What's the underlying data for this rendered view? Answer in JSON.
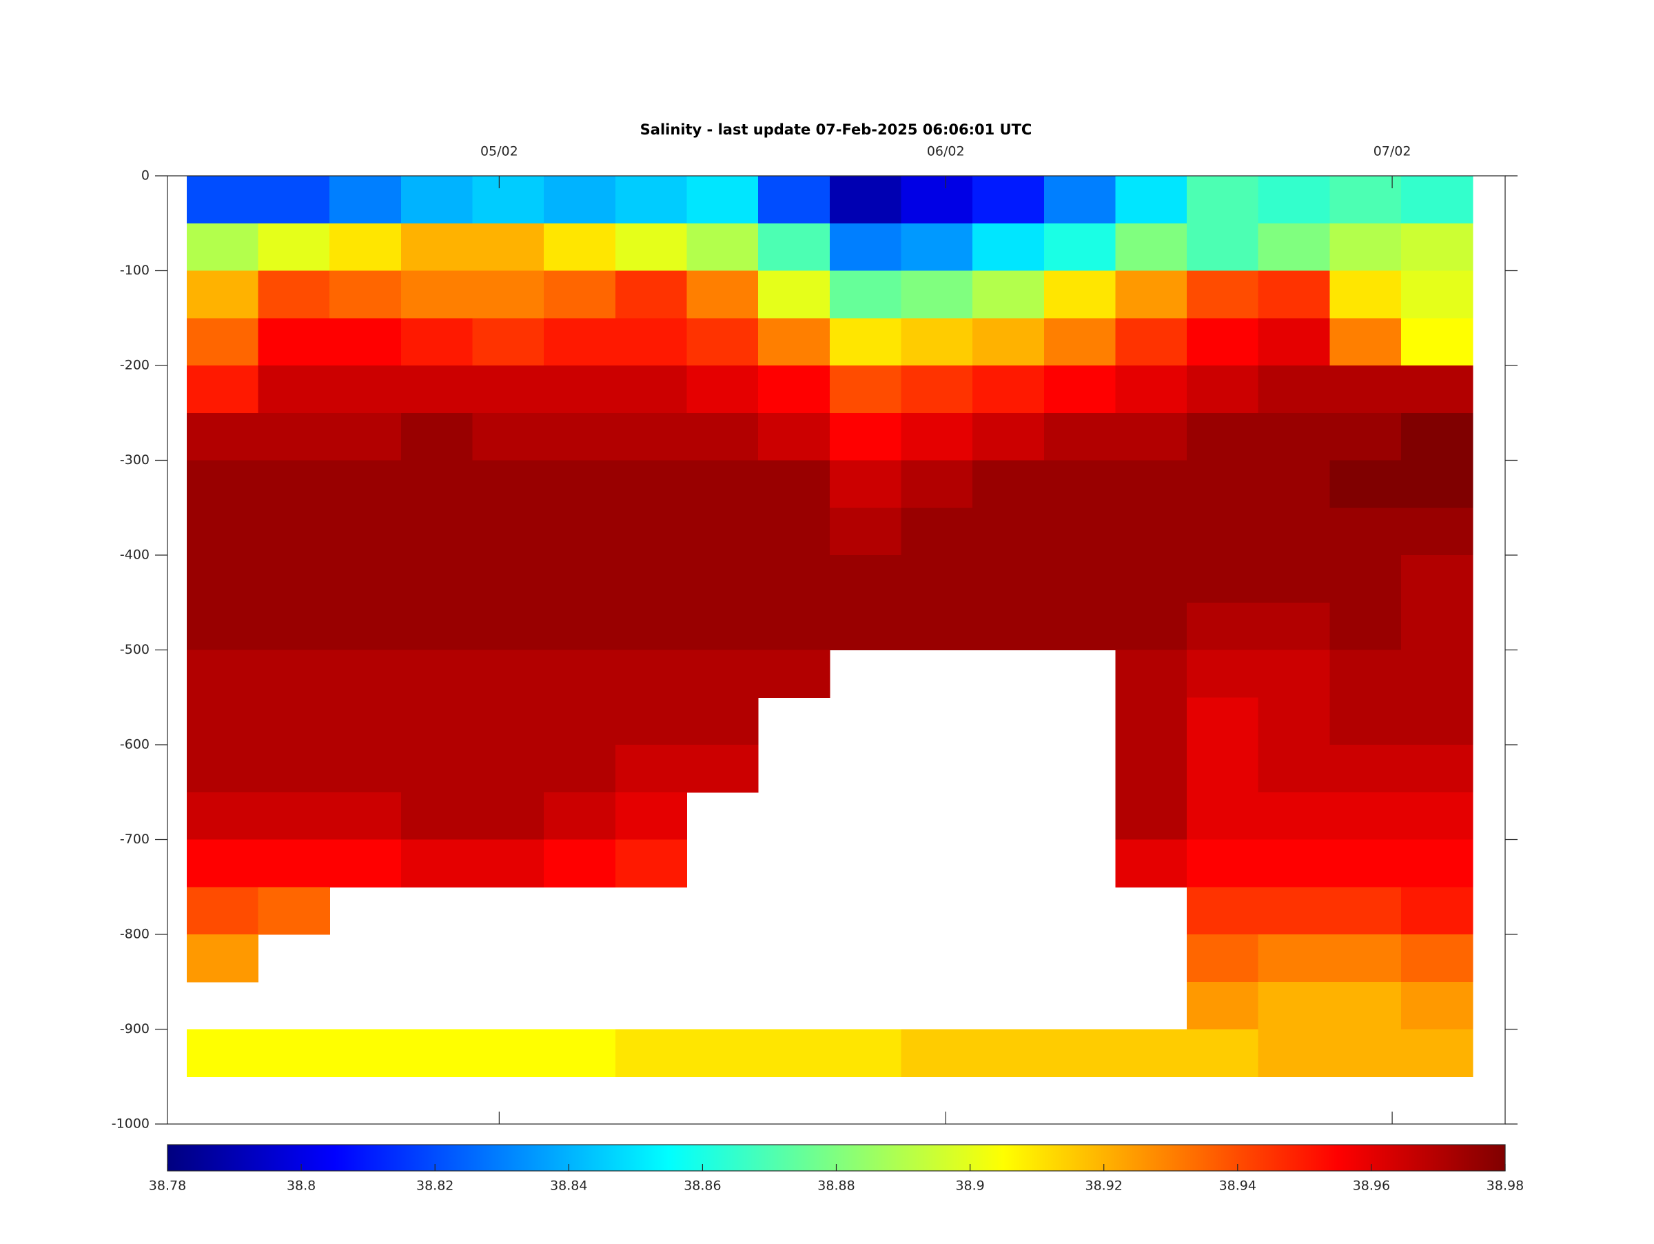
{
  "chart_data": {
    "type": "heatmap",
    "title": "Salinity - last update 07-Feb-2025 06:06:01 UTC",
    "colormap": "jet",
    "xlim": [
      4.257,
      7.253
    ],
    "xticks": [
      {
        "value": 5,
        "label": "05/02"
      },
      {
        "value": 6,
        "label": "06/02"
      },
      {
        "value": 7,
        "label": "07/02"
      }
    ],
    "ylim": [
      -1000,
      0
    ],
    "yticks": [
      0,
      -100,
      -200,
      -300,
      -400,
      -500,
      -600,
      -700,
      -800,
      -900,
      -1000
    ],
    "x": [
      4.38,
      4.54,
      4.7,
      4.86,
      5.02,
      5.18,
      5.34,
      5.5,
      5.66,
      5.82,
      5.98,
      6.14,
      6.3,
      6.46,
      6.62,
      6.78,
      6.94,
      7.1
    ],
    "y": [
      -25,
      -75,
      -125,
      -175,
      -225,
      -275,
      -325,
      -375,
      -425,
      -475,
      -525,
      -575,
      -625,
      -675,
      -725,
      -775,
      -825,
      -875,
      -925
    ],
    "z": [
      [
        38.82,
        38.89,
        38.92,
        38.935,
        38.95,
        38.97,
        38.975,
        38.975,
        38.975,
        38.975,
        38.97,
        38.97,
        38.97,
        38.965,
        38.955,
        38.94,
        38.925,
        null,
        38.905
      ],
      [
        38.82,
        38.9,
        38.94,
        38.955,
        38.965,
        38.97,
        38.975,
        38.975,
        38.975,
        38.975,
        38.97,
        38.97,
        38.97,
        38.965,
        38.955,
        38.935,
        null,
        null,
        38.905
      ],
      [
        38.83,
        38.91,
        38.935,
        38.955,
        38.965,
        38.97,
        38.975,
        38.975,
        38.975,
        38.975,
        38.97,
        38.97,
        38.97,
        38.965,
        38.955,
        null,
        null,
        null,
        38.905
      ],
      [
        38.84,
        38.92,
        38.93,
        38.95,
        38.965,
        38.975,
        38.975,
        38.975,
        38.975,
        38.975,
        38.97,
        38.97,
        38.97,
        38.97,
        38.96,
        null,
        null,
        null,
        38.905
      ],
      [
        38.845,
        38.92,
        38.93,
        38.945,
        38.965,
        38.97,
        38.975,
        38.975,
        38.975,
        38.975,
        38.97,
        38.97,
        38.97,
        38.97,
        38.96,
        null,
        null,
        null,
        38.905
      ],
      [
        38.84,
        38.91,
        38.935,
        38.95,
        38.965,
        38.97,
        38.975,
        38.975,
        38.975,
        38.975,
        38.97,
        38.97,
        38.97,
        38.965,
        38.955,
        null,
        null,
        null,
        38.905
      ],
      [
        38.845,
        38.9,
        38.945,
        38.95,
        38.965,
        38.97,
        38.975,
        38.975,
        38.975,
        38.975,
        38.97,
        38.97,
        38.965,
        38.96,
        38.95,
        null,
        null,
        null,
        38.91
      ],
      [
        38.85,
        38.89,
        38.93,
        38.945,
        38.96,
        38.97,
        38.975,
        38.975,
        38.975,
        38.975,
        38.97,
        38.97,
        38.965,
        null,
        null,
        null,
        null,
        null,
        38.91
      ],
      [
        38.82,
        38.87,
        38.9,
        38.93,
        38.955,
        38.965,
        38.975,
        38.975,
        38.975,
        38.975,
        38.97,
        null,
        null,
        null,
        null,
        null,
        null,
        null,
        38.91
      ],
      [
        38.79,
        38.83,
        38.875,
        38.91,
        38.94,
        38.955,
        38.965,
        38.97,
        38.975,
        38.975,
        null,
        null,
        null,
        null,
        null,
        null,
        null,
        null,
        38.91
      ],
      [
        38.8,
        38.835,
        38.88,
        38.915,
        38.945,
        38.96,
        38.97,
        38.975,
        38.975,
        38.975,
        null,
        null,
        null,
        null,
        null,
        null,
        null,
        null,
        38.915
      ],
      [
        38.81,
        38.85,
        38.89,
        38.92,
        38.95,
        38.965,
        38.975,
        38.975,
        38.975,
        38.975,
        null,
        null,
        null,
        null,
        null,
        null,
        null,
        null,
        38.915
      ],
      [
        38.83,
        38.86,
        38.91,
        38.93,
        38.955,
        38.97,
        38.975,
        38.975,
        38.975,
        38.975,
        null,
        null,
        null,
        null,
        null,
        null,
        null,
        null,
        38.915
      ],
      [
        38.85,
        38.88,
        38.925,
        38.945,
        38.96,
        38.97,
        38.975,
        38.975,
        38.975,
        38.975,
        38.97,
        38.97,
        38.97,
        38.97,
        38.96,
        null,
        null,
        null,
        38.915
      ],
      [
        38.87,
        38.87,
        38.94,
        38.955,
        38.965,
        38.975,
        38.975,
        38.975,
        38.975,
        38.97,
        38.965,
        38.96,
        38.96,
        38.96,
        38.955,
        38.945,
        38.935,
        38.925,
        38.915
      ],
      [
        38.865,
        38.88,
        38.945,
        38.96,
        38.97,
        38.975,
        38.975,
        38.975,
        38.975,
        38.97,
        38.965,
        38.965,
        38.965,
        38.96,
        38.955,
        38.945,
        38.93,
        38.92,
        38.92
      ],
      [
        38.87,
        38.89,
        38.91,
        38.93,
        38.97,
        38.975,
        38.98,
        38.975,
        38.975,
        38.975,
        38.97,
        38.97,
        38.965,
        38.96,
        38.955,
        38.945,
        38.93,
        38.92,
        38.92
      ],
      [
        38.865,
        38.895,
        38.9,
        38.905,
        38.97,
        38.98,
        38.98,
        38.975,
        38.97,
        38.97,
        38.97,
        38.97,
        38.965,
        38.96,
        38.955,
        38.95,
        38.935,
        38.925,
        38.92
      ]
    ],
    "colorbar": {
      "lim": [
        38.78,
        38.98
      ],
      "ticks": [
        38.78,
        38.8,
        38.82,
        38.84,
        38.86,
        38.88,
        38.9,
        38.92,
        38.94,
        38.96,
        38.98
      ]
    }
  }
}
